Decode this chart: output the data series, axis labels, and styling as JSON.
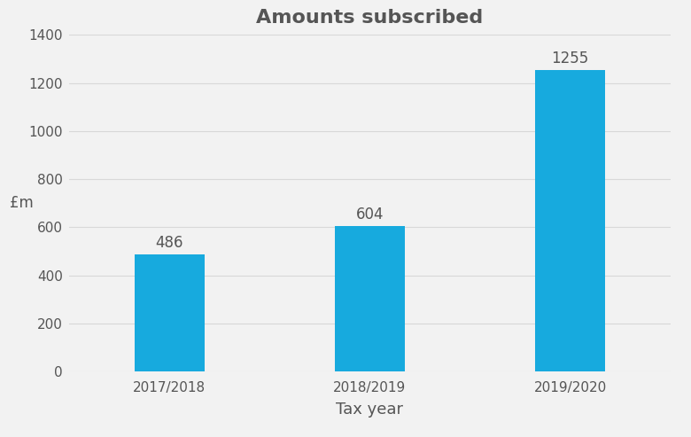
{
  "categories": [
    "2017/2018",
    "2018/2019",
    "2019/2020"
  ],
  "values": [
    486,
    604,
    1255
  ],
  "bar_color": "#17AADE",
  "title": "Amounts subscribed",
  "title_fontsize": 16,
  "xlabel": "Tax year",
  "ylabel": "£m",
  "xlabel_fontsize": 13,
  "ylabel_fontsize": 12,
  "tick_label_fontsize": 11,
  "annotation_fontsize": 12,
  "ylim": [
    0,
    1400
  ],
  "yticks": [
    0,
    200,
    400,
    600,
    800,
    1000,
    1200,
    1400
  ],
  "background_color": "#f2f2f2",
  "bar_width": 0.35,
  "grid_color": "#d8d8d8",
  "text_color": "#555555"
}
